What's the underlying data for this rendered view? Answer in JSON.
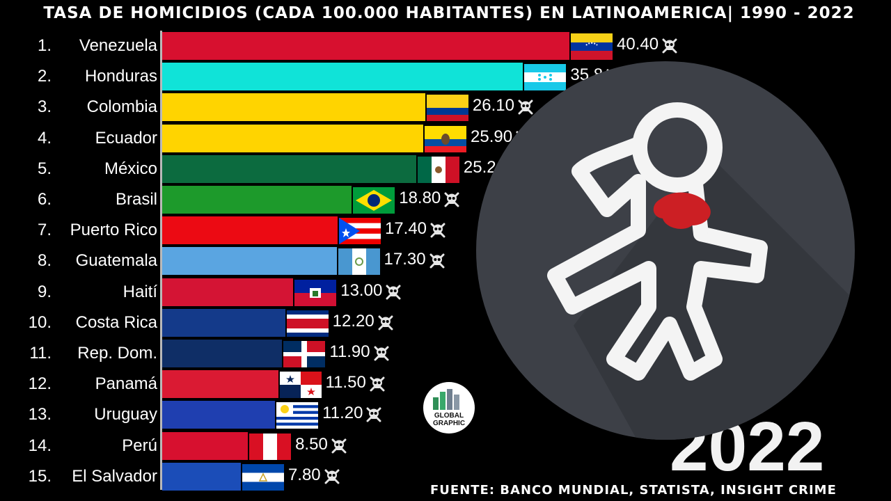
{
  "header": {
    "title": "TASA DE HOMICIDIOS (CADA 100.000 HABITANTES) EN LATINOAMERICA| 1990 - 2022"
  },
  "footer": {
    "source": "FUENTE: BANCO MUNDIAL, STATISTA, INSIGHT CRIME",
    "year": "2022"
  },
  "logo": {
    "line1": "GLOBAL",
    "line2": "GRAPHIC"
  },
  "overlay": {
    "icon": "crime-scene-body-outline-icon"
  },
  "chart_data": {
    "type": "bar",
    "title": "TASA DE HOMICIDIOS (CADA 100.000 HABITANTES) EN LATINOAMERICA| 1990 - 2022",
    "orientation": "horizontal",
    "xlim": [
      0,
      40.4
    ],
    "rows": [
      {
        "rank": "1.",
        "name": "Venezuela",
        "value": 40.4,
        "label": "40.40",
        "color": "#d7102f",
        "flag": "venezuela"
      },
      {
        "rank": "2.",
        "name": "Honduras",
        "value": 35.8,
        "label": "35.8",
        "color": "#10e3d8",
        "flag": "honduras"
      },
      {
        "rank": "3.",
        "name": "Colombia",
        "value": 26.1,
        "label": "26.10",
        "color": "#ffd400",
        "flag": "colombia"
      },
      {
        "rank": "4.",
        "name": "Ecuador",
        "value": 25.9,
        "label": "25.90",
        "color": "#ffd400",
        "flag": "ecuador"
      },
      {
        "rank": "5.",
        "name": "México",
        "value": 25.2,
        "label": "25.2",
        "color": "#0c6b3f",
        "flag": "mexico"
      },
      {
        "rank": "6.",
        "name": "Brasil",
        "value": 18.8,
        "label": "18.80",
        "color": "#1d9a2b",
        "flag": "brasil"
      },
      {
        "rank": "7.",
        "name": "Puerto Rico",
        "value": 17.4,
        "label": "17.40",
        "color": "#ec0a13",
        "flag": "puertorico"
      },
      {
        "rank": "8.",
        "name": "Guatemala",
        "value": 17.3,
        "label": "17.30",
        "color": "#5aa5e1",
        "flag": "guatemala"
      },
      {
        "rank": "9.",
        "name": "Haití",
        "value": 13.0,
        "label": "13.00",
        "color": "#d41434",
        "flag": "haiti"
      },
      {
        "rank": "10.",
        "name": "Costa Rica",
        "value": 12.2,
        "label": "12.20",
        "color": "#143a8a",
        "flag": "costarica"
      },
      {
        "rank": "11.",
        "name": "Rep. Dom.",
        "value": 11.9,
        "label": "11.90",
        "color": "#0f2e66",
        "flag": "repdom"
      },
      {
        "rank": "12.",
        "name": "Panamá",
        "value": 11.5,
        "label": "11.50",
        "color": "#da1a33",
        "flag": "panama"
      },
      {
        "rank": "13.",
        "name": "Uruguay",
        "value": 11.2,
        "label": "11.20",
        "color": "#1f3fb0",
        "flag": "uruguay"
      },
      {
        "rank": "14.",
        "name": "Perú",
        "value": 8.5,
        "label": "8.50",
        "color": "#d7102f",
        "flag": "peru"
      },
      {
        "rank": "15.",
        "name": "El Salvador",
        "value": 7.8,
        "label": "7.80",
        "color": "#1b4db8",
        "flag": "elsalvador"
      }
    ]
  }
}
